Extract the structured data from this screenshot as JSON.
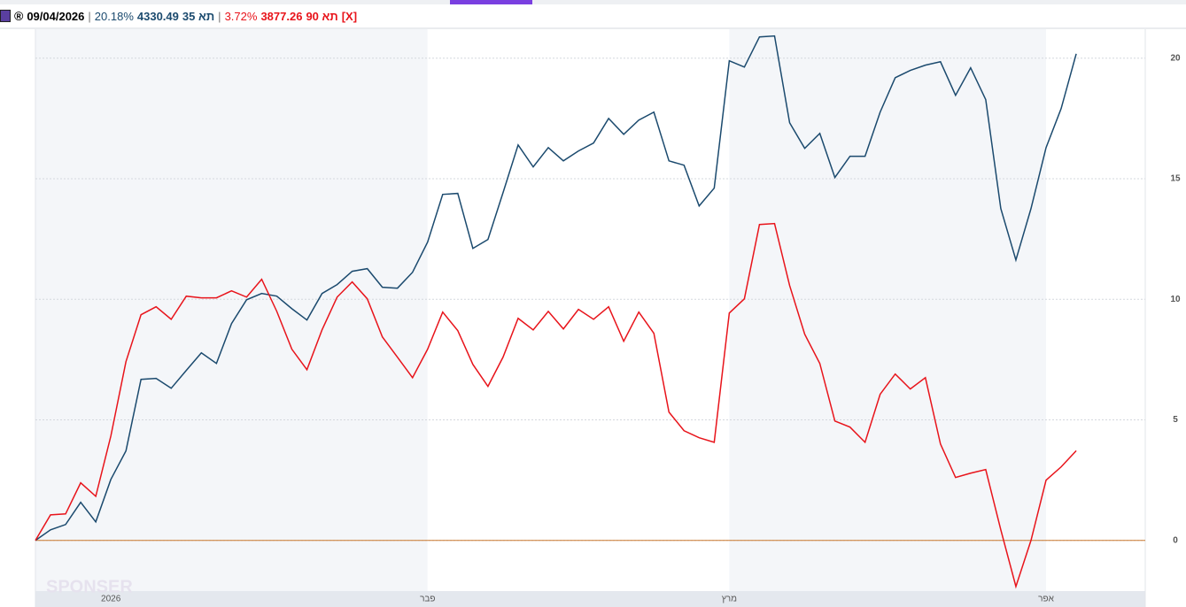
{
  "header": {
    "date": "09/04/2026",
    "separator": "|",
    "close": "[X]"
  },
  "chart_data": {
    "type": "line",
    "categories": [
      null,
      null,
      null,
      null,
      null,
      "2026",
      null,
      null,
      null,
      null,
      null,
      null,
      null,
      null,
      null,
      null,
      null,
      null,
      null,
      null,
      null,
      null,
      null,
      null,
      null,
      null,
      "פבר",
      null,
      null,
      null,
      null,
      null,
      null,
      null,
      null,
      null,
      null,
      null,
      null,
      null,
      null,
      null,
      null,
      null,
      null,
      null,
      "מרץ",
      null,
      null,
      null,
      null,
      null,
      null,
      null,
      null,
      null,
      null,
      null,
      null,
      null,
      null,
      null,
      null,
      null,
      null,
      null,
      null,
      "אפר",
      null,
      null
    ],
    "series": [
      {
        "name": "תא 35",
        "color": "#1b4a6e",
        "change_label": "20.18%",
        "last_label": "4330.49",
        "values": [
          0,
          0.44,
          0.66,
          1.58,
          0.77,
          2.53,
          3.71,
          6.68,
          6.72,
          6.31,
          7.05,
          7.78,
          7.34,
          8.99,
          9.98,
          10.24,
          10.13,
          9.61,
          9.14,
          10.24,
          10.61,
          11.16,
          11.27,
          10.5,
          10.46,
          11.12,
          12.37,
          14.35,
          14.39,
          12.11,
          12.48,
          14.42,
          16.4,
          15.49,
          16.29,
          15.74,
          16.15,
          16.48,
          17.5,
          16.84,
          17.43,
          17.76,
          15.74,
          15.56,
          13.87,
          14.61,
          19.89,
          19.63,
          20.88,
          20.92,
          17.32,
          16.26,
          16.88,
          15.05,
          15.93,
          15.93,
          17.76,
          19.19,
          19.49,
          19.71,
          19.85,
          18.46,
          19.6,
          18.28,
          13.76,
          11.63,
          13.76,
          16.29,
          17.91,
          20.18
        ]
      },
      {
        "name": "תא 90",
        "color": "#e8141b",
        "change_label": "3.72%",
        "last_label": "3877.26",
        "values": [
          0,
          1.06,
          1.1,
          2.39,
          1.83,
          4.33,
          7.41,
          9.36,
          9.69,
          9.17,
          10.13,
          10.06,
          10.06,
          10.35,
          10.09,
          10.83,
          9.5,
          7.93,
          7.08,
          8.73,
          10.09,
          10.72,
          10.02,
          8.44,
          7.6,
          6.75,
          7.93,
          9.47,
          8.7,
          7.3,
          6.39,
          7.6,
          9.21,
          8.73,
          9.5,
          8.77,
          9.58,
          9.17,
          9.69,
          8.26,
          9.47,
          8.59,
          5.32,
          4.55,
          4.26,
          4.07,
          9.43,
          10.02,
          13.1,
          13.14,
          10.57,
          8.55,
          7.34,
          4.95,
          4.7,
          4.07,
          6.06,
          6.9,
          6.28,
          6.75,
          4,
          2.61,
          2.79,
          2.94,
          0.44,
          -1.91,
          0,
          2.5,
          3.05,
          3.72
        ]
      }
    ],
    "ylim": [
      -2.1,
      21.2
    ],
    "yticks": [
      0,
      5,
      10,
      15,
      20
    ],
    "grid": true,
    "zero_line_color": "#c9782e",
    "watermark": "SPONSER"
  }
}
